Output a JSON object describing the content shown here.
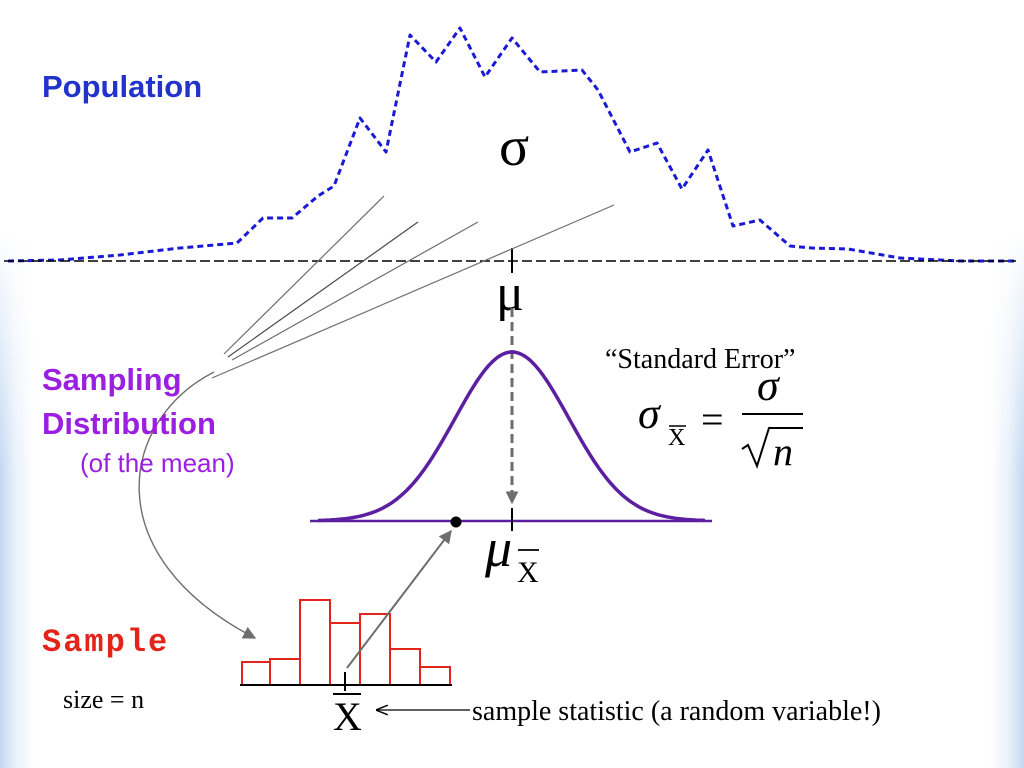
{
  "population": {
    "label": "Population",
    "sigma": "σ",
    "mu": "μ"
  },
  "sampling_distribution": {
    "label_line1": "Sampling",
    "label_line2": "Distribution",
    "qualifier": "(of the mean)",
    "mean_symbol": "μ",
    "mean_subscript": "X"
  },
  "standard_error": {
    "title": "“Standard Error”",
    "lhs_symbol": "σ",
    "lhs_subscript": "X",
    "equals": "=",
    "numerator": "σ",
    "denominator": "n"
  },
  "sample": {
    "label": "Sample",
    "size": "size = n",
    "statistic_symbol": "X",
    "statistic_caption": "sample statistic (a random variable!)"
  },
  "colors": {
    "population": "#2233cc",
    "population_curve": "#1a1ad6",
    "sampling_label": "#9b1fe0",
    "sampling_curve": "#5b1fa0",
    "sample": "#e3241b",
    "histogram": "#e3241b",
    "connector": "#6e6e6e",
    "background_edge": "#c3d8f1"
  }
}
